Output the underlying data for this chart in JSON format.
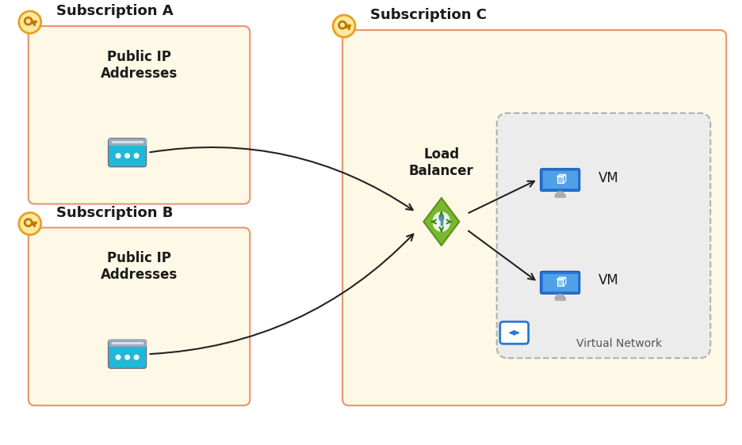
{
  "bg_color": "#ffffff",
  "sub_fill": "#fef9e7",
  "sub_border": "#e8956d",
  "vnet_fill": "#e8e8e8",
  "vnet_border": "#999999",
  "title_a": "Subscription A",
  "title_b": "Subscription B",
  "title_c": "Subscription C",
  "label_ip": "Public IP\nAddresses",
  "label_lb": "Load\nBalancer",
  "label_vm": "VM",
  "label_vnet": "Virtual Network",
  "arrow_color": "#222222",
  "text_color": "#1a1a1a",
  "key_bg": "#fde8a0",
  "key_border": "#e8a020",
  "ip_gray": "#8a9aaa",
  "ip_blue": "#20b8d8",
  "lb_green": "#78b830",
  "lb_green_dark": "#5a9010",
  "vm_blue": "#2878d8",
  "vm_blue_light": "#50a0e8",
  "vm_stand": "#b0b0b0",
  "vnet_icon_blue": "#2878d8"
}
